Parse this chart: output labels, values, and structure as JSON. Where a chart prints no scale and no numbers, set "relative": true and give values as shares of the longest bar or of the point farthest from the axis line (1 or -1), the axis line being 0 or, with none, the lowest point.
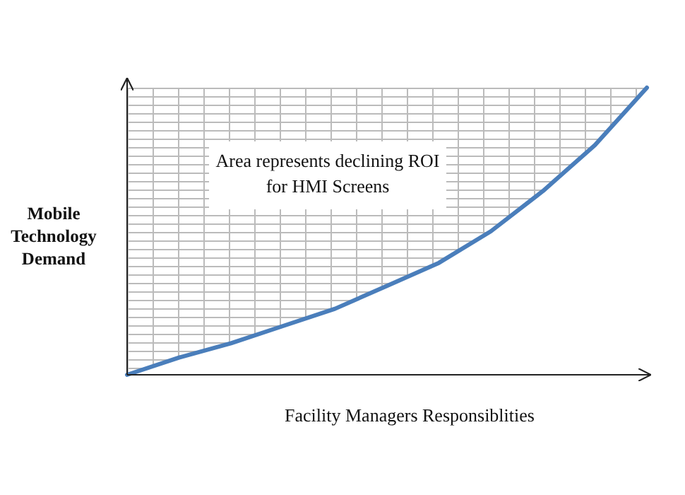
{
  "chart_data": {
    "type": "line",
    "relative": true,
    "xlabel": "Facility Managers Responsiblities",
    "ylabel": "Mobile Technology Demand",
    "annotations": [
      "Area represents declining ROI for HMI Screens"
    ],
    "categories": [
      null,
      null,
      null,
      null,
      null,
      null,
      null,
      null,
      null,
      null,
      null
    ],
    "series": [
      {
        "color": "#4a7ebb",
        "values": [
          0,
          0.06,
          0.11,
          0.17,
          0.23,
          0.31,
          0.39,
          0.5,
          0.64,
          0.8,
          1
        ],
        "lower": [
          0,
          0.06,
          0.11,
          0.17,
          0.23,
          0.31,
          0.39,
          0.5,
          0.64,
          0.8,
          1
        ],
        "upper": [
          1,
          1,
          1,
          1,
          1,
          1,
          1,
          1,
          1,
          1,
          1
        ]
      }
    ],
    "marker": "none",
    "line_style": "solid"
  }
}
